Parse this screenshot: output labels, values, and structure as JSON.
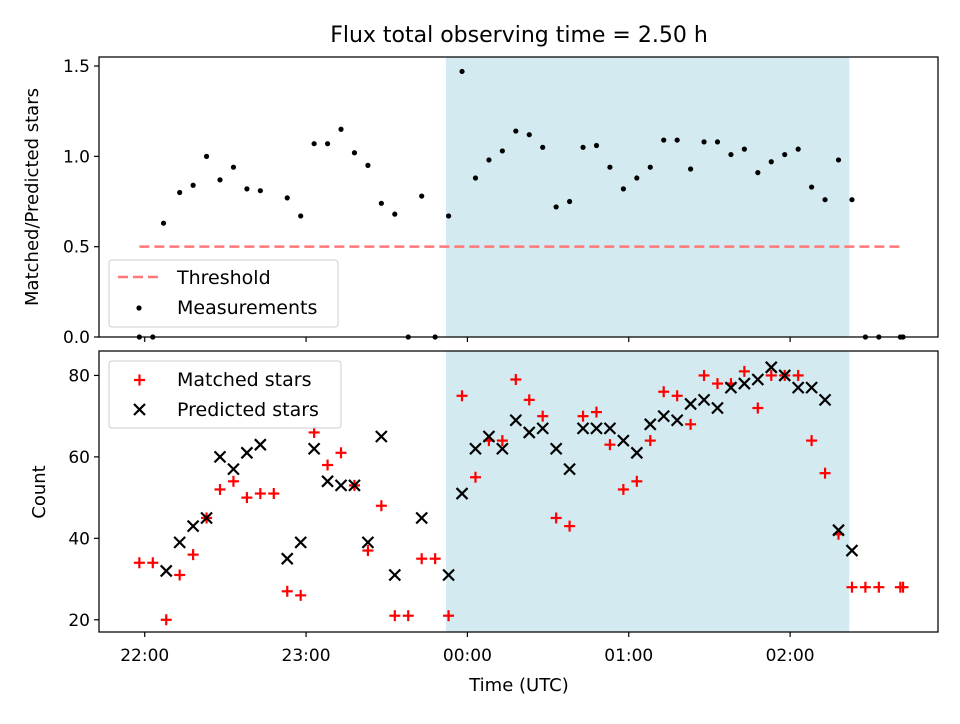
{
  "chart_data": {
    "title": "Flux total observing time = 2.50 h",
    "xlabel": "Time (UTC)",
    "x_unit": "minutes after 22:00 UTC",
    "xlim": [
      -17,
      295
    ],
    "x_ticks": [
      {
        "label": "22:00",
        "x": 0
      },
      {
        "label": "23:00",
        "x": 60
      },
      {
        "label": "00:00",
        "x": 120
      },
      {
        "label": "01:00",
        "x": 180
      },
      {
        "label": "02:00",
        "x": 240
      }
    ],
    "shaded_interval": {
      "x0": 112,
      "x1": 262,
      "color": "#d3eaf0"
    },
    "panels": [
      {
        "type": "scatter",
        "ylabel": "Matched/Predicted stars",
        "ylim": [
          0,
          1.55
        ],
        "y_ticks": [
          "0.0",
          "0.5",
          "1.0",
          "1.5"
        ],
        "y_tick_values": [
          0,
          0.5,
          1.0,
          1.5
        ],
        "threshold": {
          "name": "Threshold",
          "y": 0.5,
          "x0": -2,
          "x1": 282,
          "color": "#ff7777"
        },
        "series": [
          {
            "name": "Measurements",
            "color": "#000000",
            "marker": "dot",
            "points": [
              [
                -2,
                0
              ],
              [
                3,
                0
              ],
              [
                7,
                0.63
              ],
              [
                13,
                0.8
              ],
              [
                18,
                0.84
              ],
              [
                23,
                1.0
              ],
              [
                28,
                0.87
              ],
              [
                33,
                0.94
              ],
              [
                38,
                0.82
              ],
              [
                43,
                0.81
              ],
              [
                53,
                0.77
              ],
              [
                58,
                0.67
              ],
              [
                63,
                1.07
              ],
              [
                68,
                1.07
              ],
              [
                73,
                1.15
              ],
              [
                78,
                1.02
              ],
              [
                83,
                0.95
              ],
              [
                88,
                0.74
              ],
              [
                93,
                0.68
              ],
              [
                98,
                0
              ],
              [
                103,
                0.78
              ],
              [
                108,
                0
              ],
              [
                113,
                0.67
              ],
              [
                118,
                1.47
              ],
              [
                123,
                0.88
              ],
              [
                128,
                0.98
              ],
              [
                133,
                1.03
              ],
              [
                138,
                1.14
              ],
              [
                143,
                1.12
              ],
              [
                148,
                1.05
              ],
              [
                153,
                0.72
              ],
              [
                158,
                0.75
              ],
              [
                163,
                1.05
              ],
              [
                168,
                1.06
              ],
              [
                173,
                0.94
              ],
              [
                178,
                0.82
              ],
              [
                183,
                0.88
              ],
              [
                188,
                0.94
              ],
              [
                193,
                1.09
              ],
              [
                198,
                1.09
              ],
              [
                203,
                0.93
              ],
              [
                208,
                1.08
              ],
              [
                213,
                1.08
              ],
              [
                218,
                1.01
              ],
              [
                223,
                1.04
              ],
              [
                228,
                0.91
              ],
              [
                233,
                0.97
              ],
              [
                238,
                1.01
              ],
              [
                243,
                1.04
              ],
              [
                248,
                0.83
              ],
              [
                253,
                0.76
              ],
              [
                258,
                0.98
              ],
              [
                263,
                0.76
              ],
              [
                268,
                0
              ],
              [
                273,
                0
              ],
              [
                281,
                0
              ],
              [
                282,
                0
              ]
            ]
          }
        ],
        "legend": {
          "placement": "lower-left",
          "entries": [
            "Threshold",
            "Measurements"
          ]
        }
      },
      {
        "type": "scatter",
        "ylabel": "Count",
        "ylim": [
          17,
          86
        ],
        "y_ticks": [
          "20",
          "40",
          "60",
          "80"
        ],
        "y_tick_values": [
          20,
          40,
          60,
          80
        ],
        "series": [
          {
            "name": "Matched stars",
            "color": "#ff0000",
            "marker": "plus",
            "points": [
              [
                -2,
                34
              ],
              [
                3,
                34
              ],
              [
                8,
                20
              ],
              [
                13,
                31
              ],
              [
                18,
                36
              ],
              [
                23,
                45
              ],
              [
                28,
                52
              ],
              [
                33,
                54
              ],
              [
                38,
                50
              ],
              [
                43,
                51
              ],
              [
                48,
                51
              ],
              [
                53,
                27
              ],
              [
                58,
                26
              ],
              [
                63,
                66
              ],
              [
                68,
                58
              ],
              [
                73,
                61
              ],
              [
                78,
                53
              ],
              [
                83,
                37
              ],
              [
                88,
                48
              ],
              [
                93,
                21
              ],
              [
                98,
                21
              ],
              [
                103,
                35
              ],
              [
                108,
                35
              ],
              [
                113,
                21
              ],
              [
                118,
                75
              ],
              [
                123,
                55
              ],
              [
                128,
                64
              ],
              [
                133,
                64
              ],
              [
                138,
                79
              ],
              [
                143,
                74
              ],
              [
                148,
                70
              ],
              [
                153,
                45
              ],
              [
                158,
                43
              ],
              [
                163,
                70
              ],
              [
                168,
                71
              ],
              [
                173,
                63
              ],
              [
                178,
                52
              ],
              [
                183,
                54
              ],
              [
                188,
                64
              ],
              [
                193,
                76
              ],
              [
                198,
                75
              ],
              [
                203,
                68
              ],
              [
                208,
                80
              ],
              [
                213,
                78
              ],
              [
                218,
                78
              ],
              [
                223,
                81
              ],
              [
                228,
                72
              ],
              [
                233,
                80
              ],
              [
                238,
                80
              ],
              [
                243,
                80
              ],
              [
                248,
                64
              ],
              [
                253,
                56
              ],
              [
                258,
                41
              ],
              [
                263,
                28
              ],
              [
                268,
                28
              ],
              [
                273,
                28
              ],
              [
                281,
                28
              ],
              [
                282,
                28
              ]
            ]
          },
          {
            "name": "Predicted stars",
            "color": "#000000",
            "marker": "x",
            "points": [
              [
                8,
                32
              ],
              [
                13,
                39
              ],
              [
                18,
                43
              ],
              [
                23,
                45
              ],
              [
                28,
                60
              ],
              [
                33,
                57
              ],
              [
                38,
                61
              ],
              [
                43,
                63
              ],
              [
                53,
                35
              ],
              [
                58,
                39
              ],
              [
                63,
                62
              ],
              [
                68,
                54
              ],
              [
                73,
                53
              ],
              [
                78,
                53
              ],
              [
                83,
                39
              ],
              [
                88,
                65
              ],
              [
                93,
                31
              ],
              [
                103,
                45
              ],
              [
                113,
                31
              ],
              [
                118,
                51
              ],
              [
                123,
                62
              ],
              [
                128,
                65
              ],
              [
                133,
                62
              ],
              [
                138,
                69
              ],
              [
                143,
                66
              ],
              [
                148,
                67
              ],
              [
                153,
                62
              ],
              [
                158,
                57
              ],
              [
                163,
                67
              ],
              [
                168,
                67
              ],
              [
                173,
                67
              ],
              [
                178,
                64
              ],
              [
                183,
                61
              ],
              [
                188,
                68
              ],
              [
                193,
                70
              ],
              [
                198,
                69
              ],
              [
                203,
                73
              ],
              [
                208,
                74
              ],
              [
                213,
                72
              ],
              [
                218,
                77
              ],
              [
                223,
                78
              ],
              [
                228,
                79
              ],
              [
                233,
                82
              ],
              [
                238,
                80
              ],
              [
                243,
                77
              ],
              [
                248,
                77
              ],
              [
                253,
                74
              ],
              [
                258,
                42
              ],
              [
                263,
                37
              ]
            ]
          }
        ],
        "legend": {
          "placement": "upper-left",
          "entries": [
            "Matched stars",
            "Predicted stars"
          ]
        }
      }
    ]
  }
}
